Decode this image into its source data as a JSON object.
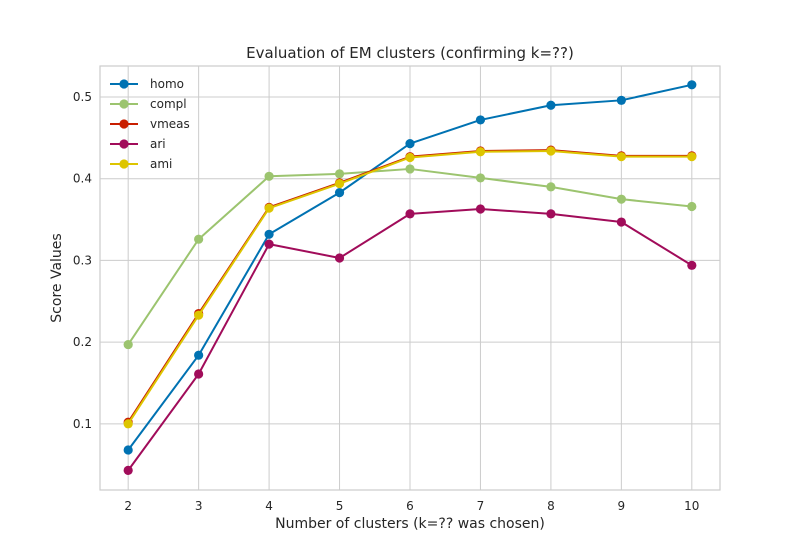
{
  "chart_data": {
    "type": "line",
    "title": "Evaluation of EM clusters (confirming k=??)",
    "xlabel": "Number of clusters (k=?? was chosen)",
    "ylabel": "Score Values",
    "x": [
      2,
      3,
      4,
      5,
      6,
      7,
      8,
      9,
      10
    ],
    "xlim": [
      1.6,
      10.4
    ],
    "ylim": [
      0.019,
      0.538
    ],
    "xticks": [
      "2",
      "3",
      "4",
      "5",
      "6",
      "7",
      "8",
      "9",
      "10"
    ],
    "yticks": [
      0.1,
      0.2,
      0.3,
      0.4,
      0.5
    ],
    "ytick_labels": [
      "0.1",
      "0.2",
      "0.3",
      "0.4",
      "0.5"
    ],
    "grid": true,
    "legend_position": "upper-left",
    "series": [
      {
        "name": "homo",
        "color": "#0072B2",
        "values": [
          0.068,
          0.184,
          0.332,
          0.383,
          0.443,
          0.472,
          0.49,
          0.496,
          0.515
        ]
      },
      {
        "name": "compl",
        "color": "#9CC46F",
        "values": [
          0.197,
          0.326,
          0.403,
          0.406,
          0.412,
          0.401,
          0.39,
          0.375,
          0.366
        ]
      },
      {
        "name": "vmeas",
        "color": "#C81E00",
        "values": [
          0.102,
          0.235,
          0.365,
          0.395,
          0.427,
          0.434,
          0.435,
          0.428,
          0.428
        ]
      },
      {
        "name": "ari",
        "color": "#A10C5A",
        "values": [
          0.043,
          0.161,
          0.32,
          0.303,
          0.357,
          0.363,
          0.357,
          0.347,
          0.294
        ]
      },
      {
        "name": "ami",
        "color": "#DDC500",
        "values": [
          0.1,
          0.233,
          0.364,
          0.394,
          0.426,
          0.433,
          0.434,
          0.427,
          0.427
        ]
      }
    ]
  }
}
